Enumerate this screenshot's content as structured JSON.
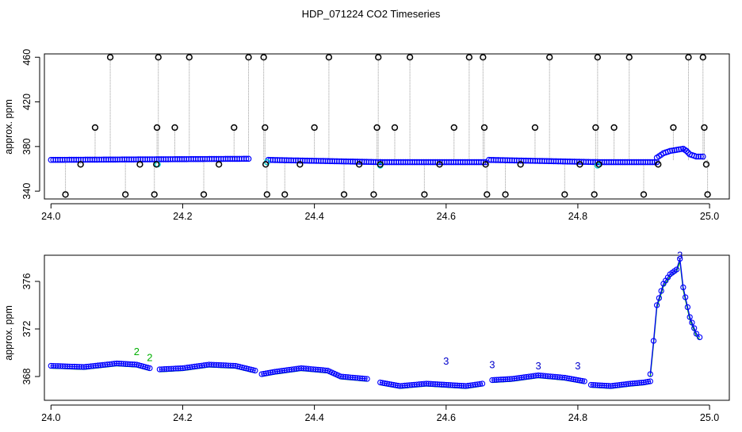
{
  "title": "HDP_071224  CO2 Timeseries",
  "colors": {
    "outlier": "#000000",
    "circle": "#0000ff",
    "label2": "#00b000",
    "label3": "#0000cc",
    "cyan": "#00cccc",
    "line": "#999999"
  },
  "chart_data": [
    {
      "type": "scatter",
      "ylabel": "approx. ppm",
      "xlim": [
        23.99,
        25.03
      ],
      "ylim": [
        333,
        463
      ],
      "x_ticks": [
        "24.0",
        "24.2",
        "24.4",
        "24.6",
        "24.8",
        "25.0"
      ],
      "x_tick_values": [
        24.0,
        24.2,
        24.4,
        24.6,
        24.8,
        25.0
      ],
      "y_ticks": [
        "340",
        "380",
        "420",
        "460"
      ],
      "y_tick_values": [
        340,
        380,
        420,
        460
      ],
      "baseline_segments": [
        {
          "x": [
            24.0,
            24.3
          ],
          "y": [
            368,
            369
          ]
        },
        {
          "x": [
            24.33,
            24.5
          ],
          "y": [
            368,
            366
          ]
        },
        {
          "x": [
            24.5,
            24.66
          ],
          "y": [
            366,
            366
          ]
        },
        {
          "x": [
            24.665,
            24.83
          ],
          "y": [
            368,
            366
          ]
        },
        {
          "x": [
            24.83,
            24.92
          ],
          "y": [
            366,
            366
          ]
        }
      ],
      "bump": {
        "x": [
          24.92,
          24.93,
          24.94,
          24.95,
          24.96,
          24.965,
          24.97,
          24.98,
          24.99
        ],
        "y": [
          370,
          374,
          376,
          377,
          378,
          376,
          373,
          371,
          371
        ]
      },
      "outliers": [
        {
          "x": 24.022,
          "y": 337
        },
        {
          "x": 24.045,
          "y": 364
        },
        {
          "x": 24.067,
          "y": 397
        },
        {
          "x": 24.09,
          "y": 460
        },
        {
          "x": 24.113,
          "y": 337
        },
        {
          "x": 24.135,
          "y": 364
        },
        {
          "x": 24.157,
          "y": 337
        },
        {
          "x": 24.16,
          "y": 364
        },
        {
          "x": 24.161,
          "y": 397
        },
        {
          "x": 24.163,
          "y": 460
        },
        {
          "x": 24.188,
          "y": 397
        },
        {
          "x": 24.21,
          "y": 460
        },
        {
          "x": 24.232,
          "y": 337
        },
        {
          "x": 24.255,
          "y": 364
        },
        {
          "x": 24.278,
          "y": 397
        },
        {
          "x": 24.3,
          "y": 460
        },
        {
          "x": 24.323,
          "y": 460
        },
        {
          "x": 24.325,
          "y": 397
        },
        {
          "x": 24.326,
          "y": 364
        },
        {
          "x": 24.328,
          "y": 337
        },
        {
          "x": 24.355,
          "y": 337
        },
        {
          "x": 24.378,
          "y": 364
        },
        {
          "x": 24.4,
          "y": 397
        },
        {
          "x": 24.422,
          "y": 460
        },
        {
          "x": 24.445,
          "y": 337
        },
        {
          "x": 24.468,
          "y": 364
        },
        {
          "x": 24.49,
          "y": 337
        },
        {
          "x": 24.495,
          "y": 397
        },
        {
          "x": 24.497,
          "y": 460
        },
        {
          "x": 24.5,
          "y": 364
        },
        {
          "x": 24.522,
          "y": 397
        },
        {
          "x": 24.545,
          "y": 460
        },
        {
          "x": 24.567,
          "y": 337
        },
        {
          "x": 24.59,
          "y": 364
        },
        {
          "x": 24.612,
          "y": 397
        },
        {
          "x": 24.635,
          "y": 460
        },
        {
          "x": 24.656,
          "y": 460
        },
        {
          "x": 24.658,
          "y": 397
        },
        {
          "x": 24.66,
          "y": 364
        },
        {
          "x": 24.662,
          "y": 337
        },
        {
          "x": 24.69,
          "y": 337
        },
        {
          "x": 24.713,
          "y": 364
        },
        {
          "x": 24.735,
          "y": 397
        },
        {
          "x": 24.757,
          "y": 460
        },
        {
          "x": 24.78,
          "y": 337
        },
        {
          "x": 24.803,
          "y": 364
        },
        {
          "x": 24.825,
          "y": 337
        },
        {
          "x": 24.827,
          "y": 397
        },
        {
          "x": 24.83,
          "y": 460
        },
        {
          "x": 24.832,
          "y": 364
        },
        {
          "x": 24.855,
          "y": 397
        },
        {
          "x": 24.878,
          "y": 460
        },
        {
          "x": 24.9,
          "y": 337
        },
        {
          "x": 24.922,
          "y": 364
        },
        {
          "x": 24.945,
          "y": 397
        },
        {
          "x": 24.968,
          "y": 460
        },
        {
          "x": 24.99,
          "y": 460
        },
        {
          "x": 24.992,
          "y": 397
        },
        {
          "x": 24.995,
          "y": 364
        },
        {
          "x": 24.997,
          "y": 337
        }
      ],
      "cyan_points": [
        {
          "x": 24.162,
          "y": 364
        },
        {
          "x": 24.328,
          "y": 366
        },
        {
          "x": 24.5,
          "y": 363
        },
        {
          "x": 24.83,
          "y": 363
        }
      ]
    },
    {
      "type": "scatter",
      "ylabel": "approx. ppm",
      "xlim": [
        23.99,
        25.03
      ],
      "ylim": [
        366,
        378.2
      ],
      "x_ticks": [
        "24.0",
        "24.2",
        "24.4",
        "24.6",
        "24.8",
        "25.0"
      ],
      "x_tick_values": [
        24.0,
        24.2,
        24.4,
        24.6,
        24.8,
        25.0
      ],
      "y_ticks": [
        "368",
        "372",
        "376"
      ],
      "y_tick_values": [
        368,
        372,
        376
      ],
      "segments": [
        {
          "x": [
            24.0,
            24.05,
            24.1,
            24.13,
            24.15
          ],
          "y": [
            368.9,
            368.8,
            369.1,
            369.0,
            368.7
          ]
        },
        {
          "x": [
            24.165,
            24.2,
            24.24,
            24.28,
            24.31
          ],
          "y": [
            368.6,
            368.7,
            369.0,
            368.9,
            368.5
          ]
        },
        {
          "x": [
            24.32,
            24.34,
            24.38,
            24.42,
            24.44,
            24.48
          ],
          "y": [
            368.2,
            368.4,
            368.7,
            368.5,
            368.0,
            367.8
          ]
        },
        {
          "x": [
            24.5,
            24.53,
            24.57,
            24.6,
            24.63,
            24.655
          ],
          "y": [
            367.5,
            367.2,
            367.4,
            367.3,
            367.2,
            367.4
          ]
        },
        {
          "x": [
            24.67,
            24.7,
            24.74,
            24.78,
            24.81
          ],
          "y": [
            367.7,
            367.8,
            368.1,
            367.9,
            367.6
          ]
        },
        {
          "x": [
            24.82,
            24.85,
            24.88,
            24.9,
            24.91
          ],
          "y": [
            367.3,
            367.2,
            367.4,
            367.5,
            367.6
          ]
        },
        {
          "x": [
            24.91,
            24.915,
            24.92,
            24.93,
            24.94,
            24.95,
            24.955,
            24.96,
            24.97,
            24.98,
            24.985
          ],
          "y": [
            368.2,
            371.0,
            374.0,
            375.8,
            376.6,
            377.0,
            377.9,
            375.5,
            373.0,
            371.6,
            371.3
          ]
        }
      ],
      "annotations": [
        {
          "text": "2",
          "x": 24.13,
          "y": 369.8,
          "series": "2"
        },
        {
          "text": "2",
          "x": 24.15,
          "y": 369.3,
          "series": "2"
        },
        {
          "text": "3",
          "x": 24.6,
          "y": 369.0,
          "series": "3"
        },
        {
          "text": "3",
          "x": 24.67,
          "y": 368.7,
          "series": "3"
        },
        {
          "text": "3",
          "x": 24.74,
          "y": 368.6,
          "series": "3"
        },
        {
          "text": "3",
          "x": 24.8,
          "y": 368.6,
          "series": "3"
        },
        {
          "text": "3",
          "x": 24.955,
          "y": 377.9,
          "series": "3"
        }
      ]
    }
  ]
}
